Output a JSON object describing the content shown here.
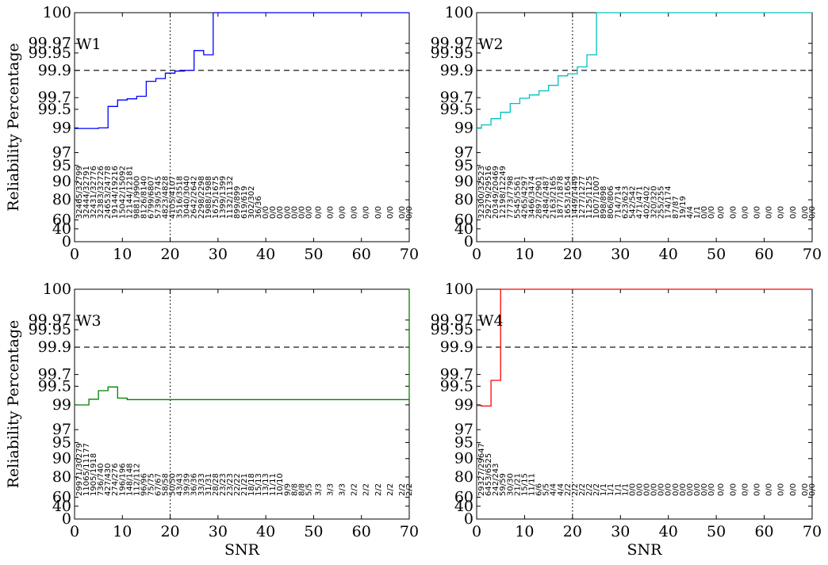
{
  "chart_data": [
    {
      "type": "line",
      "title": "W1",
      "color": "#0000ff",
      "xlabel": "",
      "ylabel": "Reliability Percentage",
      "xlim": [
        0,
        70
      ],
      "xticks": [
        0,
        10,
        20,
        30,
        40,
        50,
        60,
        70
      ],
      "yticks": [
        "100",
        "99.97",
        "99.95",
        "99.9",
        "99.7",
        "99.5",
        "99",
        "97",
        "95",
        "90",
        "80",
        "60",
        "40",
        "0"
      ],
      "reference_lines": {
        "horizontal": "99.9",
        "vertical": 20
      },
      "step_edges": [
        0,
        5,
        7,
        9,
        11,
        13,
        15,
        17,
        19,
        21,
        23,
        25,
        27,
        29,
        70
      ],
      "step_values": [
        98.95,
        99.0,
        99.55,
        99.66,
        99.68,
        99.71,
        99.82,
        99.84,
        99.88,
        99.895,
        99.9,
        99.955,
        99.945,
        100.0
      ],
      "count_x": [
        1.0,
        2.5,
        4.0,
        5.5,
        7.0,
        8.5,
        10.0,
        11.5,
        13.0,
        14.5,
        16.0,
        17.5,
        19.0,
        20.5,
        22.0,
        23.5,
        25.0,
        26.5,
        28.0,
        29.5,
        31.0,
        32.5,
        34.0,
        35.5,
        37.0,
        38.5,
        40.0,
        41.5,
        43.0,
        44.5,
        46.0,
        47.5,
        49.0,
        51.0,
        53.5,
        56.0,
        58.5,
        61.0,
        63.5,
        66.0,
        68.5,
        70.0
      ],
      "counts": [
        "32465/32799",
        "32444/32791",
        "32431/32776",
        "32383/32726",
        "24653/24778",
        "19144/19216",
        "15042/15092",
        "12144/12181",
        "9881/9900",
        "8126/8140",
        "6799/6807",
        "5739/5745",
        "4823/4828",
        "4105/4107",
        "3516/3518",
        "3040/3040",
        "2642/2642",
        "2298/2298",
        "1988/1988",
        "1675/1675",
        "1399/1399",
        "1132/1132",
        "899/899",
        "619/619",
        "302/302",
        "36/36",
        "0/0",
        "0/0",
        "0/0",
        "0/0",
        "0/0",
        "0/0",
        "0/0",
        "0/0",
        "0/0",
        "0/0",
        "0/0",
        "0/0",
        "0/0",
        "0/0",
        "0/0",
        "0/0"
      ]
    },
    {
      "type": "line",
      "title": "W2",
      "color": "#00bfbf",
      "xlabel": "",
      "ylabel": "",
      "xlim": [
        0,
        70
      ],
      "xticks": [
        0,
        10,
        20,
        30,
        40,
        50,
        60,
        70
      ],
      "yticks": [
        "100",
        "99.97",
        "99.95",
        "99.9",
        "99.7",
        "99.5",
        "99",
        "97",
        "95",
        "90",
        "80",
        "60",
        "40",
        "0"
      ],
      "reference_lines": {
        "horizontal": "99.9",
        "vertical": 20
      },
      "step_edges": [
        0,
        1,
        3,
        5,
        7,
        9,
        11,
        13,
        15,
        17,
        19,
        21,
        23,
        25,
        70
      ],
      "step_values": [
        98.97,
        99.08,
        99.25,
        99.42,
        99.6,
        99.69,
        99.72,
        99.75,
        99.79,
        99.86,
        99.875,
        99.91,
        99.945,
        100.0
      ],
      "count_x": [
        1.0,
        2.5,
        4.0,
        5.5,
        7.0,
        8.5,
        10.0,
        11.5,
        13.0,
        14.5,
        16.0,
        17.5,
        19.0,
        20.5,
        22.0,
        23.5,
        25.0,
        26.5,
        28.0,
        29.5,
        31.0,
        32.5,
        34.0,
        35.5,
        37.0,
        38.5,
        40.0,
        41.5,
        43.0,
        44.5,
        46.0,
        47.5,
        49.0,
        51.0,
        53.5,
        56.0,
        58.5,
        61.0,
        63.5,
        66.0,
        68.5,
        70.0
      ],
      "counts": [
        "32300/32523",
        "29279/29516",
        "20349/20469",
        "12198/12249",
        "7773/7798",
        "5545/5561",
        "4265/4297",
        "3466/3474",
        "2897/2901",
        "2484/2487",
        "2163/2165",
        "1877/1878",
        "1653/1654",
        "1449/1449",
        "1277/1277",
        "1125/1125",
        "1007/1007",
        "898/898",
        "806/806",
        "714/714",
        "623/623",
        "542/542",
        "471/471",
        "402/402",
        "320/320",
        "255/255",
        "174/174",
        "87/87",
        "19/19",
        "4/4",
        "1/1",
        "0/0",
        "0/0",
        "0/0",
        "0/0",
        "0/0",
        "0/0",
        "0/0",
        "0/0",
        "0/0",
        "0/0",
        "0/0"
      ]
    },
    {
      "type": "line",
      "title": "W3",
      "color": "#008000",
      "xlabel": "SNR",
      "ylabel": "Reliability Percentage",
      "xlim": [
        0,
        70
      ],
      "xticks": [
        0,
        10,
        20,
        30,
        40,
        50,
        60,
        70
      ],
      "yticks": [
        "100",
        "99.97",
        "99.95",
        "99.9",
        "99.7",
        "99.5",
        "99",
        "97",
        "95",
        "90",
        "80",
        "60",
        "40",
        "0"
      ],
      "reference_lines": {
        "horizontal": "99.9",
        "vertical": 20
      },
      "step_edges": [
        0,
        3,
        5,
        7,
        9,
        11,
        70
      ],
      "step_values": [
        98.99,
        99.15,
        99.38,
        99.48,
        99.18,
        99.14,
        100.0
      ],
      "count_x": [
        1.0,
        2.5,
        4.0,
        5.5,
        7.0,
        8.5,
        10.0,
        11.5,
        13.0,
        14.5,
        16.0,
        17.5,
        19.0,
        20.5,
        22.0,
        23.5,
        25.0,
        26.5,
        28.0,
        29.5,
        31.0,
        32.5,
        34.0,
        35.5,
        37.0,
        38.5,
        40.0,
        41.5,
        43.0,
        44.5,
        46.0,
        47.5,
        49.0,
        51.0,
        53.5,
        56.0,
        58.5,
        61.0,
        63.5,
        66.0,
        68.5,
        70.0
      ],
      "counts": [
        "29971/30279",
        "11065/11177",
        "1905/1918",
        "736/740",
        "427/430",
        "274/276",
        "196/196",
        "148/148",
        "112/112",
        "96/96",
        "75/75",
        "67/67",
        "58/58",
        "50/50",
        "43/43",
        "39/39",
        "36/36",
        "33/33",
        "31/31",
        "28/28",
        "23/23",
        "23/23",
        "22/22",
        "21/21",
        "18/18",
        "15/13",
        "13/13",
        "11/11",
        "10/10",
        "9/9",
        "8/8",
        "8/8",
        "5/5",
        "3/3",
        "3/3",
        "3/3",
        "2/2",
        "2/2",
        "2/2",
        "2/2",
        "2/2",
        "2/2"
      ]
    },
    {
      "type": "line",
      "title": "W4",
      "color": "#ff0000",
      "xlabel": "SNR",
      "ylabel": "",
      "xlim": [
        0,
        70
      ],
      "xticks": [
        0,
        10,
        20,
        30,
        40,
        50,
        60,
        70
      ],
      "yticks": [
        "100",
        "99.97",
        "99.95",
        "99.9",
        "99.7",
        "99.5",
        "99",
        "97",
        "95",
        "90",
        "80",
        "60",
        "40",
        "0"
      ],
      "reference_lines": {
        "horizontal": "99.9",
        "vertical": 20
      },
      "step_edges": [
        0,
        1,
        3,
        5,
        70
      ],
      "step_values": [
        98.95,
        98.9,
        99.6,
        100.0
      ],
      "count_x": [
        1.0,
        2.5,
        4.0,
        5.5,
        7.0,
        8.5,
        10.0,
        11.5,
        13.0,
        14.5,
        16.0,
        17.5,
        19.0,
        20.5,
        22.0,
        23.5,
        25.0,
        26.5,
        28.0,
        29.5,
        31.0,
        32.5,
        34.0,
        35.5,
        37.0,
        38.5,
        40.0,
        41.5,
        43.0,
        44.5,
        46.0,
        47.5,
        49.0,
        51.0,
        53.5,
        56.0,
        58.5,
        61.0,
        63.5,
        66.0,
        68.5,
        70.0
      ],
      "counts": [
        "29327/29647",
        "6453/6525",
        "242/243",
        "59/59",
        "30/30",
        "21/21",
        "15/15",
        "11/11",
        "6/6",
        "5/5",
        "4/4",
        "4/4",
        "2/2",
        "2/2",
        "2/2",
        "2/2",
        "2/2",
        "1/1",
        "1/1",
        "1/1",
        "1/1",
        "0/0",
        "0/0",
        "0/0",
        "0/0",
        "0/0",
        "0/0",
        "0/0",
        "0/0",
        "0/0",
        "0/0",
        "0/0",
        "0/0",
        "0/0",
        "0/0",
        "0/0",
        "0/0",
        "0/0",
        "0/0",
        "0/0",
        "0/0",
        "0/0"
      ]
    }
  ]
}
